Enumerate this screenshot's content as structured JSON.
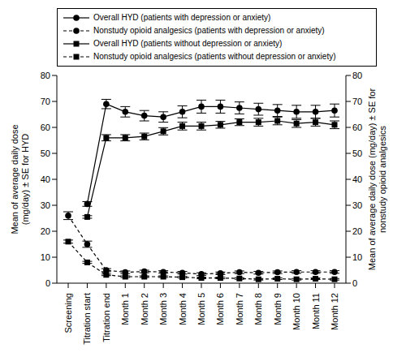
{
  "chart_data": {
    "type": "line",
    "categories": [
      "Screening",
      "Titration start",
      "Titration end",
      "Month 1",
      "Month 2",
      "Month 3",
      "Month 4",
      "Month 5",
      "Month 6",
      "Month 7",
      "Month 8",
      "Month 9",
      "Month 10",
      "Month 11",
      "Month 12"
    ],
    "ylabel": "Mean of average daily dose (mg/day) ± SE for HYD",
    "y2label": "Mean of average daily dose (mg/day) ± SE for nonstudy opioid analgesics",
    "ylim": [
      0,
      80
    ],
    "yticks": [
      0,
      10,
      20,
      30,
      40,
      50,
      60,
      70,
      80
    ],
    "y2lim": [
      0,
      80
    ],
    "y2ticks": [
      0,
      10,
      20,
      30,
      40,
      50,
      60,
      70,
      80
    ],
    "grid": false,
    "series": [
      {
        "name": "Overall HYD (patients with depression or anxiety)",
        "color": "#000000",
        "marker": "circle",
        "line_style": "solid",
        "axis": "y",
        "values": [
          null,
          30.5,
          69,
          66,
          64.5,
          64,
          66,
          68,
          68,
          67.5,
          67,
          66.5,
          66,
          66,
          66.5
        ],
        "se": [
          null,
          0.9,
          1.8,
          2,
          2,
          2,
          2.3,
          2.5,
          2.5,
          2.3,
          2.3,
          2.3,
          2.5,
          2.5,
          2.5
        ]
      },
      {
        "name": "Nonstudy opioid analgesics (patients with depression or anxiety)",
        "color": "#000000",
        "marker": "circle",
        "line_style": "dashed",
        "axis": "y2",
        "values": [
          26,
          15,
          5,
          4.2,
          4.5,
          4.3,
          4,
          3.5,
          3.8,
          4.2,
          4,
          4.2,
          4.3,
          4.3,
          4.3
        ],
        "se": [
          1.5,
          1.2,
          0.6,
          0.5,
          0.5,
          0.5,
          0.5,
          0.5,
          0.5,
          0.5,
          0.5,
          0.5,
          0.5,
          0.5,
          0.5
        ]
      },
      {
        "name": "Overall HYD (patients without depression or anxiety)",
        "color": "#000000",
        "marker": "square",
        "line_style": "solid",
        "axis": "y",
        "values": [
          null,
          25.5,
          56,
          56,
          56.5,
          58.5,
          60.5,
          60.5,
          61,
          62,
          62,
          62.5,
          61.5,
          62,
          61
        ],
        "se": [
          null,
          0.5,
          1.2,
          1.2,
          1.3,
          1.4,
          1.5,
          1.5,
          1.3,
          1.3,
          1.5,
          1.5,
          1.5,
          1.5,
          1.5
        ]
      },
      {
        "name": "Nonstudy opioid analgesics (patients without depression or anxiety)",
        "color": "#000000",
        "marker": "square",
        "line_style": "dashed",
        "axis": "y2",
        "values": [
          16,
          8,
          3.2,
          2.5,
          2.5,
          2.5,
          2.3,
          2,
          2,
          1.8,
          1.5,
          1.7,
          1.5,
          1.7,
          1.5
        ],
        "se": [
          0.6,
          0.4,
          0.3,
          0.3,
          0.3,
          0.3,
          0.3,
          0.3,
          0.3,
          0.3,
          0.3,
          0.3,
          0.3,
          0.3,
          0.3
        ]
      }
    ]
  }
}
